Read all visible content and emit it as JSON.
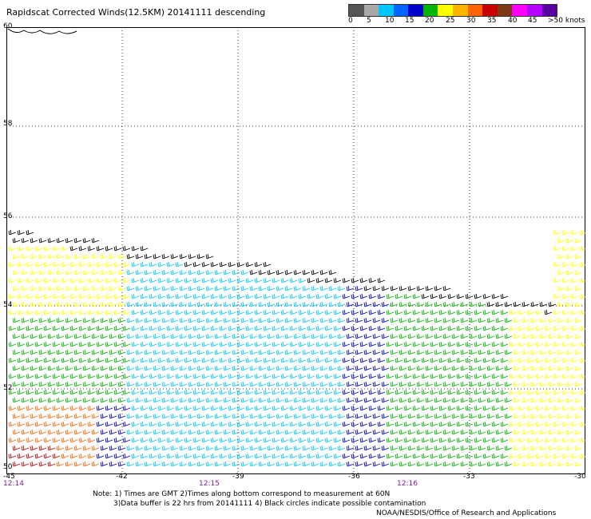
{
  "title": "Rapidscat Corrected Winds(12.5KM) 20141111 descending",
  "legend": {
    "labels": [
      "0",
      "5",
      "10",
      "15",
      "20",
      "25",
      "30",
      "35",
      "40",
      "45",
      ">50 knots"
    ],
    "colors": [
      "#555555",
      "#a8a8a8",
      "#00c8ff",
      "#0064ff",
      "#0000c8",
      "#00b400",
      "#ffff00",
      "#ffb400",
      "#ff6400",
      "#c80000",
      "#7a3a14",
      "#ff00ff",
      "#b400ff",
      "#5a00a0"
    ]
  },
  "lat_labels": [
    "60",
    "58",
    "56",
    "54",
    "52",
    "50"
  ],
  "lon_labels": [
    "-45",
    "-42",
    "-39",
    "-36",
    "-33",
    "-30"
  ],
  "time_labels": [
    "12:14",
    "12:15",
    "12:16"
  ],
  "notes": {
    "line1": "Note: 1) Times are GMT 2)Times along bottom correspond to measurement at 60N",
    "line2": "3)Data buffer is 22 hrs from 20141111 4) Black circles indicate possible contamination",
    "line3": "NOAA/NESDIS/Office of Research and Applications"
  }
}
